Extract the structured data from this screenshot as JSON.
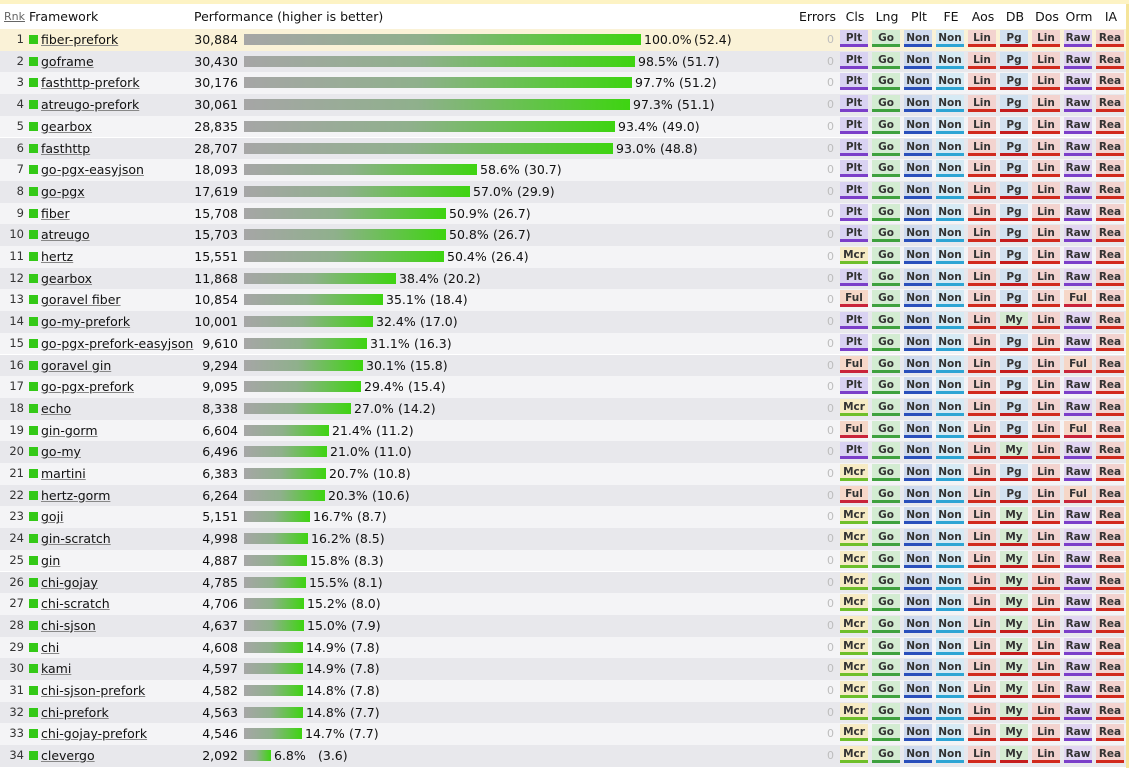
{
  "columns": {
    "rank": "Rnk",
    "framework": "Framework",
    "performance": "Performance (higher is better)",
    "errors": "Errors",
    "cls": "Cls",
    "lng": "Lng",
    "plt": "Plt",
    "fe": "FE",
    "aos": "Aos",
    "db": "DB",
    "dos": "Dos",
    "orm": "Orm",
    "ia": "IA"
  },
  "tag_colors": {
    "Plt": [
      "#d9d2f2",
      "#7b3fc9"
    ],
    "Mcr": [
      "#f6ebc4",
      "#6fbf2a"
    ],
    "Ful": [
      "#f6d7c8",
      "#c9233a"
    ],
    "Go": [
      "#d3ecd2",
      "#3fa13f"
    ],
    "Non": [
      "#cfdaee",
      "#2a4fbb"
    ],
    "NonFE": [
      "#d6eaf4",
      "#2ea5d4"
    ],
    "Lin": [
      "#f3d3cf",
      "#d12a1d"
    ],
    "Pg": [
      "#d3e2f0",
      "#c51d1d"
    ],
    "My": [
      "#d6ebd2",
      "#c51d1d"
    ],
    "Raw": [
      "#e1d5f1",
      "#7b3fc9"
    ],
    "Rea": [
      "#f3d3cf",
      "#d12a1d"
    ]
  },
  "rows": [
    {
      "rank": "1",
      "name": "fiber-prefork",
      "score": "30,884",
      "pct": 100.0,
      "pct_label": "100.0%",
      "rel": "(52.4)",
      "errors": "0",
      "cls": "Plt",
      "lng": "Go",
      "plt": "Non",
      "fe": "Non",
      "aos": "Lin",
      "db": "Pg",
      "dos": "Lin",
      "orm": "Raw",
      "ia": "Rea"
    },
    {
      "rank": "2",
      "name": "goframe",
      "score": "30,430",
      "pct": 98.5,
      "pct_label": "98.5%",
      "rel": "(51.7)",
      "errors": "0",
      "cls": "Plt",
      "lng": "Go",
      "plt": "Non",
      "fe": "Non",
      "aos": "Lin",
      "db": "Pg",
      "dos": "Lin",
      "orm": "Raw",
      "ia": "Rea"
    },
    {
      "rank": "3",
      "name": "fasthttp-prefork",
      "score": "30,176",
      "pct": 97.7,
      "pct_label": "97.7%",
      "rel": "(51.2)",
      "errors": "0",
      "cls": "Plt",
      "lng": "Go",
      "plt": "Non",
      "fe": "Non",
      "aos": "Lin",
      "db": "Pg",
      "dos": "Lin",
      "orm": "Raw",
      "ia": "Rea"
    },
    {
      "rank": "4",
      "name": "atreugo-prefork",
      "score": "30,061",
      "pct": 97.3,
      "pct_label": "97.3%",
      "rel": "(51.1)",
      "errors": "0",
      "cls": "Plt",
      "lng": "Go",
      "plt": "Non",
      "fe": "Non",
      "aos": "Lin",
      "db": "Pg",
      "dos": "Lin",
      "orm": "Raw",
      "ia": "Rea"
    },
    {
      "rank": "5",
      "name": "gearbox",
      "score": "28,835",
      "pct": 93.4,
      "pct_label": "93.4%",
      "rel": "(49.0)",
      "errors": "0",
      "cls": "Plt",
      "lng": "Go",
      "plt": "Non",
      "fe": "Non",
      "aos": "Lin",
      "db": "Pg",
      "dos": "Lin",
      "orm": "Raw",
      "ia": "Rea"
    },
    {
      "rank": "6",
      "name": "fasthttp",
      "score": "28,707",
      "pct": 93.0,
      "pct_label": "93.0%",
      "rel": "(48.8)",
      "errors": "0",
      "cls": "Plt",
      "lng": "Go",
      "plt": "Non",
      "fe": "Non",
      "aos": "Lin",
      "db": "Pg",
      "dos": "Lin",
      "orm": "Raw",
      "ia": "Rea"
    },
    {
      "rank": "7",
      "name": "go-pgx-easyjson",
      "score": "18,093",
      "pct": 58.6,
      "pct_label": "58.6%",
      "rel": "(30.7)",
      "errors": "0",
      "cls": "Plt",
      "lng": "Go",
      "plt": "Non",
      "fe": "Non",
      "aos": "Lin",
      "db": "Pg",
      "dos": "Lin",
      "orm": "Raw",
      "ia": "Rea"
    },
    {
      "rank": "8",
      "name": "go-pgx",
      "score": "17,619",
      "pct": 57.0,
      "pct_label": "57.0%",
      "rel": "(29.9)",
      "errors": "0",
      "cls": "Plt",
      "lng": "Go",
      "plt": "Non",
      "fe": "Non",
      "aos": "Lin",
      "db": "Pg",
      "dos": "Lin",
      "orm": "Raw",
      "ia": "Rea"
    },
    {
      "rank": "9",
      "name": "fiber",
      "score": "15,708",
      "pct": 50.9,
      "pct_label": "50.9%",
      "rel": "(26.7)",
      "errors": "0",
      "cls": "Plt",
      "lng": "Go",
      "plt": "Non",
      "fe": "Non",
      "aos": "Lin",
      "db": "Pg",
      "dos": "Lin",
      "orm": "Raw",
      "ia": "Rea"
    },
    {
      "rank": "10",
      "name": "atreugo",
      "score": "15,703",
      "pct": 50.8,
      "pct_label": "50.8%",
      "rel": "(26.7)",
      "errors": "0",
      "cls": "Plt",
      "lng": "Go",
      "plt": "Non",
      "fe": "Non",
      "aos": "Lin",
      "db": "Pg",
      "dos": "Lin",
      "orm": "Raw",
      "ia": "Rea"
    },
    {
      "rank": "11",
      "name": "hertz",
      "score": "15,551",
      "pct": 50.4,
      "pct_label": "50.4%",
      "rel": "(26.4)",
      "errors": "0",
      "cls": "Mcr",
      "lng": "Go",
      "plt": "Non",
      "fe": "Non",
      "aos": "Lin",
      "db": "Pg",
      "dos": "Lin",
      "orm": "Raw",
      "ia": "Rea"
    },
    {
      "rank": "12",
      "name": "gearbox",
      "score": "11,868",
      "pct": 38.4,
      "pct_label": "38.4%",
      "rel": "(20.2)",
      "errors": "0",
      "cls": "Plt",
      "lng": "Go",
      "plt": "Non",
      "fe": "Non",
      "aos": "Lin",
      "db": "Pg",
      "dos": "Lin",
      "orm": "Raw",
      "ia": "Rea"
    },
    {
      "rank": "13",
      "name": "goravel fiber",
      "score": "10,854",
      "pct": 35.1,
      "pct_label": "35.1%",
      "rel": "(18.4)",
      "errors": "0",
      "cls": "Ful",
      "lng": "Go",
      "plt": "Non",
      "fe": "Non",
      "aos": "Lin",
      "db": "Pg",
      "dos": "Lin",
      "orm": "Ful",
      "ia": "Rea"
    },
    {
      "rank": "14",
      "name": "go-my-prefork",
      "score": "10,001",
      "pct": 32.4,
      "pct_label": "32.4%",
      "rel": "(17.0)",
      "errors": "0",
      "cls": "Plt",
      "lng": "Go",
      "plt": "Non",
      "fe": "Non",
      "aos": "Lin",
      "db": "My",
      "dos": "Lin",
      "orm": "Raw",
      "ia": "Rea"
    },
    {
      "rank": "15",
      "name": "go-pgx-prefork-easyjson",
      "score": "9,610",
      "pct": 31.1,
      "pct_label": "31.1%",
      "rel": "(16.3)",
      "errors": "0",
      "cls": "Plt",
      "lng": "Go",
      "plt": "Non",
      "fe": "Non",
      "aos": "Lin",
      "db": "Pg",
      "dos": "Lin",
      "orm": "Raw",
      "ia": "Rea"
    },
    {
      "rank": "16",
      "name": "goravel gin",
      "score": "9,294",
      "pct": 30.1,
      "pct_label": "30.1%",
      "rel": "(15.8)",
      "errors": "0",
      "cls": "Ful",
      "lng": "Go",
      "plt": "Non",
      "fe": "Non",
      "aos": "Lin",
      "db": "Pg",
      "dos": "Lin",
      "orm": "Ful",
      "ia": "Rea"
    },
    {
      "rank": "17",
      "name": "go-pgx-prefork",
      "score": "9,095",
      "pct": 29.4,
      "pct_label": "29.4%",
      "rel": "(15.4)",
      "errors": "0",
      "cls": "Plt",
      "lng": "Go",
      "plt": "Non",
      "fe": "Non",
      "aos": "Lin",
      "db": "Pg",
      "dos": "Lin",
      "orm": "Raw",
      "ia": "Rea"
    },
    {
      "rank": "18",
      "name": "echo",
      "score": "8,338",
      "pct": 27.0,
      "pct_label": "27.0%",
      "rel": "(14.2)",
      "errors": "0",
      "cls": "Mcr",
      "lng": "Go",
      "plt": "Non",
      "fe": "Non",
      "aos": "Lin",
      "db": "Pg",
      "dos": "Lin",
      "orm": "Raw",
      "ia": "Rea"
    },
    {
      "rank": "19",
      "name": "gin-gorm",
      "score": "6,604",
      "pct": 21.4,
      "pct_label": "21.4%",
      "rel": "(11.2)",
      "errors": "0",
      "cls": "Ful",
      "lng": "Go",
      "plt": "Non",
      "fe": "Non",
      "aos": "Lin",
      "db": "Pg",
      "dos": "Lin",
      "orm": "Ful",
      "ia": "Rea"
    },
    {
      "rank": "20",
      "name": "go-my",
      "score": "6,496",
      "pct": 21.0,
      "pct_label": "21.0%",
      "rel": "(11.0)",
      "errors": "0",
      "cls": "Plt",
      "lng": "Go",
      "plt": "Non",
      "fe": "Non",
      "aos": "Lin",
      "db": "My",
      "dos": "Lin",
      "orm": "Raw",
      "ia": "Rea"
    },
    {
      "rank": "21",
      "name": "martini",
      "score": "6,383",
      "pct": 20.7,
      "pct_label": "20.7%",
      "rel": "(10.8)",
      "errors": "0",
      "cls": "Mcr",
      "lng": "Go",
      "plt": "Non",
      "fe": "Non",
      "aos": "Lin",
      "db": "Pg",
      "dos": "Lin",
      "orm": "Raw",
      "ia": "Rea"
    },
    {
      "rank": "22",
      "name": "hertz-gorm",
      "score": "6,264",
      "pct": 20.3,
      "pct_label": "20.3%",
      "rel": "(10.6)",
      "errors": "0",
      "cls": "Ful",
      "lng": "Go",
      "plt": "Non",
      "fe": "Non",
      "aos": "Lin",
      "db": "Pg",
      "dos": "Lin",
      "orm": "Ful",
      "ia": "Rea"
    },
    {
      "rank": "23",
      "name": "goji",
      "score": "5,151",
      "pct": 16.7,
      "pct_label": "16.7%",
      "rel": "(8.7)",
      "errors": "0",
      "cls": "Mcr",
      "lng": "Go",
      "plt": "Non",
      "fe": "Non",
      "aos": "Lin",
      "db": "My",
      "dos": "Lin",
      "orm": "Raw",
      "ia": "Rea"
    },
    {
      "rank": "24",
      "name": "gin-scratch",
      "score": "4,998",
      "pct": 16.2,
      "pct_label": "16.2%",
      "rel": "(8.5)",
      "errors": "0",
      "cls": "Mcr",
      "lng": "Go",
      "plt": "Non",
      "fe": "Non",
      "aos": "Lin",
      "db": "My",
      "dos": "Lin",
      "orm": "Raw",
      "ia": "Rea"
    },
    {
      "rank": "25",
      "name": "gin",
      "score": "4,887",
      "pct": 15.8,
      "pct_label": "15.8%",
      "rel": "(8.3)",
      "errors": "0",
      "cls": "Mcr",
      "lng": "Go",
      "plt": "Non",
      "fe": "Non",
      "aos": "Lin",
      "db": "My",
      "dos": "Lin",
      "orm": "Raw",
      "ia": "Rea"
    },
    {
      "rank": "26",
      "name": "chi-gojay",
      "score": "4,785",
      "pct": 15.5,
      "pct_label": "15.5%",
      "rel": "(8.1)",
      "errors": "0",
      "cls": "Mcr",
      "lng": "Go",
      "plt": "Non",
      "fe": "Non",
      "aos": "Lin",
      "db": "My",
      "dos": "Lin",
      "orm": "Raw",
      "ia": "Rea"
    },
    {
      "rank": "27",
      "name": "chi-scratch",
      "score": "4,706",
      "pct": 15.2,
      "pct_label": "15.2%",
      "rel": "(8.0)",
      "errors": "0",
      "cls": "Mcr",
      "lng": "Go",
      "plt": "Non",
      "fe": "Non",
      "aos": "Lin",
      "db": "My",
      "dos": "Lin",
      "orm": "Raw",
      "ia": "Rea"
    },
    {
      "rank": "28",
      "name": "chi-sjson",
      "score": "4,637",
      "pct": 15.0,
      "pct_label": "15.0%",
      "rel": "(7.9)",
      "errors": "0",
      "cls": "Mcr",
      "lng": "Go",
      "plt": "Non",
      "fe": "Non",
      "aos": "Lin",
      "db": "My",
      "dos": "Lin",
      "orm": "Raw",
      "ia": "Rea"
    },
    {
      "rank": "29",
      "name": "chi",
      "score": "4,608",
      "pct": 14.9,
      "pct_label": "14.9%",
      "rel": "(7.8)",
      "errors": "0",
      "cls": "Mcr",
      "lng": "Go",
      "plt": "Non",
      "fe": "Non",
      "aos": "Lin",
      "db": "My",
      "dos": "Lin",
      "orm": "Raw",
      "ia": "Rea"
    },
    {
      "rank": "30",
      "name": "kami",
      "score": "4,597",
      "pct": 14.9,
      "pct_label": "14.9%",
      "rel": "(7.8)",
      "errors": "0",
      "cls": "Mcr",
      "lng": "Go",
      "plt": "Non",
      "fe": "Non",
      "aos": "Lin",
      "db": "My",
      "dos": "Lin",
      "orm": "Raw",
      "ia": "Rea"
    },
    {
      "rank": "31",
      "name": "chi-sjson-prefork",
      "score": "4,582",
      "pct": 14.8,
      "pct_label": "14.8%",
      "rel": "(7.8)",
      "errors": "0",
      "cls": "Mcr",
      "lng": "Go",
      "plt": "Non",
      "fe": "Non",
      "aos": "Lin",
      "db": "My",
      "dos": "Lin",
      "orm": "Raw",
      "ia": "Rea"
    },
    {
      "rank": "32",
      "name": "chi-prefork",
      "score": "4,563",
      "pct": 14.8,
      "pct_label": "14.8%",
      "rel": "(7.7)",
      "errors": "0",
      "cls": "Mcr",
      "lng": "Go",
      "plt": "Non",
      "fe": "Non",
      "aos": "Lin",
      "db": "My",
      "dos": "Lin",
      "orm": "Raw",
      "ia": "Rea"
    },
    {
      "rank": "33",
      "name": "chi-gojay-prefork",
      "score": "4,546",
      "pct": 14.7,
      "pct_label": "14.7%",
      "rel": "(7.7)",
      "errors": "0",
      "cls": "Mcr",
      "lng": "Go",
      "plt": "Non",
      "fe": "Non",
      "aos": "Lin",
      "db": "My",
      "dos": "Lin",
      "orm": "Raw",
      "ia": "Rea"
    },
    {
      "rank": "34",
      "name": "clevergo",
      "score": "2,092",
      "pct": 6.8,
      "pct_label": "6.8%",
      "rel": "(3.6)",
      "errors": "0",
      "cls": "Mcr",
      "lng": "Go",
      "plt": "Non",
      "fe": "Non",
      "aos": "Lin",
      "db": "My",
      "dos": "Lin",
      "orm": "Raw",
      "ia": "Rea"
    }
  ]
}
